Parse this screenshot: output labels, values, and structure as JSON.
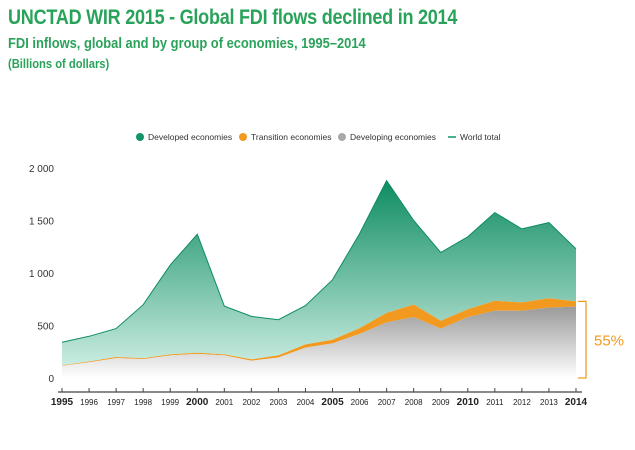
{
  "header": {
    "title": "UNCTAD WIR 2015 - Global FDI flows declined in 2014",
    "subtitle": "FDI inflows, global and by group of economies, 1995–2014",
    "unit": "(Billions of dollars)"
  },
  "chart_data": {
    "type": "area",
    "stacked": true,
    "x": [
      1995,
      1996,
      1997,
      1998,
      1999,
      2000,
      2001,
      2002,
      2003,
      2004,
      2005,
      2006,
      2007,
      2008,
      2009,
      2010,
      2011,
      2012,
      2013,
      2014
    ],
    "x_tick_labels": [
      "1995",
      "1996",
      "1997",
      "1998",
      "1999",
      "2000",
      "2001",
      "2002",
      "2003",
      "2004",
      "2005",
      "2006",
      "2007",
      "2008",
      "2009",
      "2010",
      "2011",
      "2012",
      "2013",
      "2014"
    ],
    "bold_x_ticks": [
      "1995",
      "2000",
      "2005",
      "2010",
      "2014"
    ],
    "y_tick_labels": [
      "0",
      "500",
      "1 000",
      "1 500",
      "2 000"
    ],
    "ylim": [
      0,
      2000
    ],
    "grid": false,
    "legend_position": "top",
    "series": [
      {
        "name": "Developing economies",
        "color": "#a8a8a8",
        "values": [
          115,
          150,
          190,
          180,
          215,
          230,
          215,
          165,
          195,
          290,
          330,
          420,
          530,
          580,
          470,
          580,
          640,
          640,
          670,
          680
        ]
      },
      {
        "name": "Transition economies",
        "color": "#f29a20",
        "values": [
          5,
          7,
          10,
          8,
          10,
          10,
          10,
          12,
          20,
          30,
          35,
          55,
          90,
          120,
          75,
          75,
          95,
          80,
          90,
          50
        ]
      },
      {
        "name": "Developed economies",
        "color": "#13946a",
        "values": [
          220,
          240,
          270,
          510,
          850,
          1130,
          460,
          410,
          340,
          370,
          570,
          900,
          1260,
          800,
          650,
          690,
          840,
          700,
          720,
          500
        ]
      }
    ],
    "legend_entries": [
      {
        "name": "Developed economies",
        "color": "#13946a",
        "marker": "dot"
      },
      {
        "name": "Transition economies",
        "color": "#f29a20",
        "marker": "dot"
      },
      {
        "name": "Developing economies",
        "color": "#a8a8a8",
        "marker": "dot"
      },
      {
        "name": "World total",
        "color": "#13946a",
        "marker": "line"
      }
    ],
    "annotation": {
      "text": "55%",
      "color": "#f29a20",
      "x": 2014,
      "y_range": [
        0,
        730
      ]
    }
  }
}
